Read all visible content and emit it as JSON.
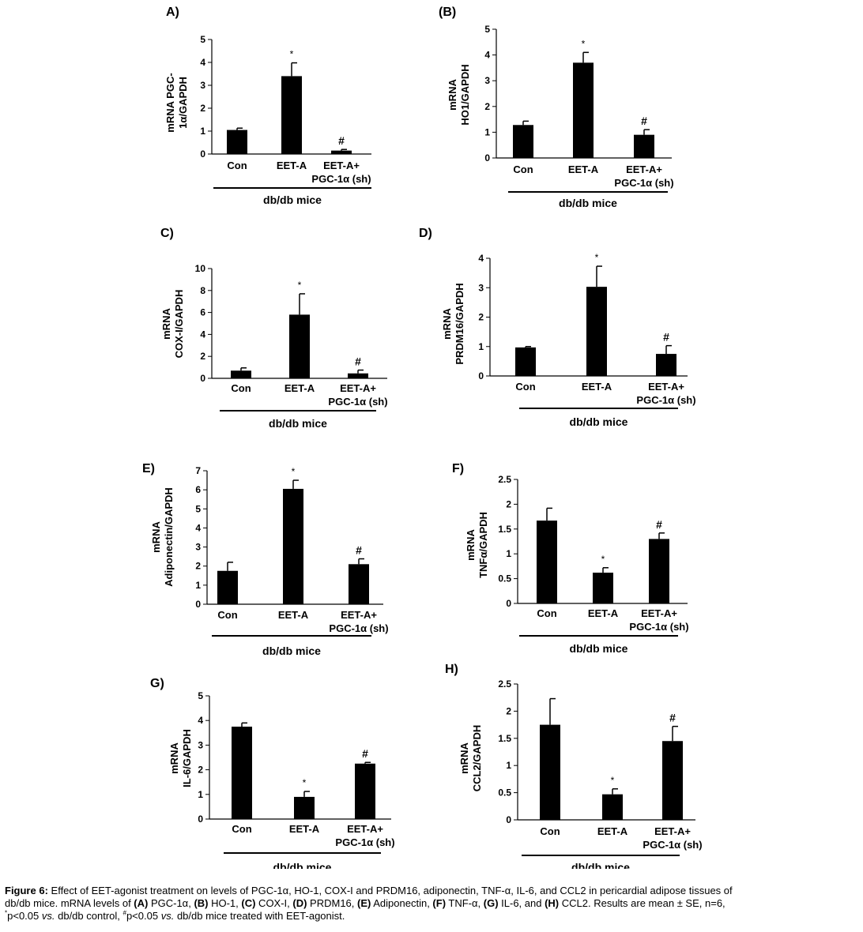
{
  "charts": [
    {
      "panel": "A)",
      "title": "",
      "ylabel": [
        "mRNA PGC-",
        "1α/GAPDH"
      ],
      "ylim": [
        0,
        5
      ],
      "ticks": [
        0,
        1,
        2,
        3,
        4,
        5
      ],
      "categories": [
        "Con",
        "EET-A",
        "EET-A+|PGC-1α (sh)"
      ],
      "values": [
        1.05,
        3.4,
        0.15
      ],
      "errors": [
        0.08,
        0.58,
        0.05
      ],
      "marks": [
        "",
        "*",
        "#"
      ],
      "group_label": "db/db mice"
    },
    {
      "panel": "(B)",
      "title": "",
      "ylabel": [
        "mRNA",
        "HO1/GAPDH"
      ],
      "ylim": [
        0,
        5
      ],
      "ticks": [
        0,
        1,
        2,
        3,
        4,
        5
      ],
      "categories": [
        "Con",
        "EET-A",
        "EET-A+|PGC-1α (sh)"
      ],
      "values": [
        1.28,
        3.7,
        0.9
      ],
      "errors": [
        0.15,
        0.4,
        0.2
      ],
      "marks": [
        "",
        "*",
        "#"
      ],
      "group_label": "db/db mice"
    },
    {
      "panel": "C)",
      "title": "",
      "ylabel": [
        "mRNA",
        "COX-I/GAPDH"
      ],
      "ylim": [
        0,
        10
      ],
      "ticks": [
        0,
        2,
        4,
        6,
        8,
        10
      ],
      "categories": [
        "Con",
        "EET-A",
        "EET-A+|PGC-1α (sh)"
      ],
      "values": [
        0.7,
        5.8,
        0.45
      ],
      "errors": [
        0.25,
        1.9,
        0.3
      ],
      "marks": [
        "",
        "*",
        "#"
      ],
      "group_label": "db/db mice"
    },
    {
      "panel": "D)",
      "title": "",
      "ylabel": [
        "mRNA",
        "PRDM16/GAPDH"
      ],
      "ylim": [
        0,
        4
      ],
      "ticks": [
        0,
        1,
        2,
        3,
        4
      ],
      "categories": [
        "Con",
        "EET-A",
        "EET-A+|PGC-1α (sh)"
      ],
      "values": [
        0.97,
        3.03,
        0.75
      ],
      "errors": [
        0.03,
        0.7,
        0.28
      ],
      "marks": [
        "",
        "*",
        "#"
      ],
      "group_label": "db/db mice"
    },
    {
      "panel": "E)",
      "title": "",
      "ylabel": [
        "mRNA",
        "Adiponectin/GAPDH"
      ],
      "ylim": [
        0,
        7
      ],
      "ticks": [
        0,
        1,
        2,
        3,
        4,
        5,
        6,
        7
      ],
      "categories": [
        "Con",
        "EET-A",
        "EET-A+|PGC-1α (sh)"
      ],
      "values": [
        1.75,
        6.05,
        2.1
      ],
      "errors": [
        0.45,
        0.45,
        0.28
      ],
      "marks": [
        "",
        "*",
        "#"
      ],
      "group_label": "db/db mice"
    },
    {
      "panel": "F)",
      "title": "",
      "ylabel": [
        "mRNA",
        "TNFα/GAPDH"
      ],
      "ylim": [
        0,
        2.5
      ],
      "ticks": [
        0,
        0.5,
        1,
        1.5,
        2,
        2.5
      ],
      "categories": [
        "Con",
        "EET-A",
        "EET-A+|PGC-1α (sh)"
      ],
      "values": [
        1.67,
        0.62,
        1.3
      ],
      "errors": [
        0.25,
        0.1,
        0.12
      ],
      "marks": [
        "",
        "*",
        "#"
      ],
      "group_label": "db/db mice"
    },
    {
      "panel": "G)",
      "title": "",
      "ylabel": [
        "mRNA",
        "IL-6/GAPDH"
      ],
      "ylim": [
        0,
        5
      ],
      "ticks": [
        0,
        1,
        2,
        3,
        4,
        5
      ],
      "categories": [
        "Con",
        "EET-A",
        "EET-A+|PGC-1α (sh)"
      ],
      "values": [
        3.75,
        0.9,
        2.25
      ],
      "errors": [
        0.15,
        0.22,
        0.05
      ],
      "marks": [
        "",
        "*",
        "#"
      ],
      "group_label": "db/db mice"
    },
    {
      "panel": "H)",
      "title": "",
      "ylabel": [
        "mRNA",
        "CCL2/GAPDH"
      ],
      "ylim": [
        0,
        2.5
      ],
      "ticks": [
        0,
        0.5,
        1,
        1.5,
        2,
        2.5
      ],
      "categories": [
        "Con",
        "EET-A",
        "EET-A+|PGC-1α (sh)"
      ],
      "values": [
        1.75,
        0.47,
        1.45
      ],
      "errors": [
        0.48,
        0.1,
        0.27
      ],
      "marks": [
        "",
        "*",
        "#"
      ],
      "group_label": "db/db mice"
    }
  ],
  "chart_data": [
    {
      "type": "bar",
      "panel": "A",
      "title": "",
      "categories": [
        "Con",
        "EET-A",
        "EET-A+ PGC-1α (sh)"
      ],
      "values": [
        1.05,
        3.4,
        0.15
      ],
      "errors": [
        0.08,
        0.58,
        0.05
      ],
      "xlabel": "db/db mice",
      "ylabel": "mRNA PGC-1α/GAPDH",
      "ylim": [
        0,
        5
      ]
    },
    {
      "type": "bar",
      "panel": "B",
      "title": "",
      "categories": [
        "Con",
        "EET-A",
        "EET-A+ PGC-1α (sh)"
      ],
      "values": [
        1.28,
        3.7,
        0.9
      ],
      "errors": [
        0.15,
        0.4,
        0.2
      ],
      "xlabel": "db/db mice",
      "ylabel": "mRNA HO1/GAPDH",
      "ylim": [
        0,
        5
      ]
    },
    {
      "type": "bar",
      "panel": "C",
      "title": "",
      "categories": [
        "Con",
        "EET-A",
        "EET-A+ PGC-1α (sh)"
      ],
      "values": [
        0.7,
        5.8,
        0.45
      ],
      "errors": [
        0.25,
        1.9,
        0.3
      ],
      "xlabel": "db/db mice",
      "ylabel": "mRNA COX-I/GAPDH",
      "ylim": [
        0,
        10
      ]
    },
    {
      "type": "bar",
      "panel": "D",
      "title": "",
      "categories": [
        "Con",
        "EET-A",
        "EET-A+ PGC-1α (sh)"
      ],
      "values": [
        0.97,
        3.03,
        0.75
      ],
      "errors": [
        0.03,
        0.7,
        0.28
      ],
      "xlabel": "db/db mice",
      "ylabel": "mRNA PRDM16/GAPDH",
      "ylim": [
        0,
        4
      ]
    },
    {
      "type": "bar",
      "panel": "E",
      "title": "",
      "categories": [
        "Con",
        "EET-A",
        "EET-A+ PGC-1α (sh)"
      ],
      "values": [
        1.75,
        6.05,
        2.1
      ],
      "errors": [
        0.45,
        0.45,
        0.28
      ],
      "xlabel": "db/db mice",
      "ylabel": "mRNA Adiponectin/GAPDH",
      "ylim": [
        0,
        7
      ]
    },
    {
      "type": "bar",
      "panel": "F",
      "title": "",
      "categories": [
        "Con",
        "EET-A",
        "EET-A+ PGC-1α (sh)"
      ],
      "values": [
        1.67,
        0.62,
        1.3
      ],
      "errors": [
        0.25,
        0.1,
        0.12
      ],
      "xlabel": "db/db mice",
      "ylabel": "mRNA TNFα/GAPDH",
      "ylim": [
        0,
        2.5
      ]
    },
    {
      "type": "bar",
      "panel": "G",
      "title": "",
      "categories": [
        "Con",
        "EET-A",
        "EET-A+ PGC-1α (sh)"
      ],
      "values": [
        3.75,
        0.9,
        2.25
      ],
      "errors": [
        0.15,
        0.22,
        0.05
      ],
      "xlabel": "db/db mice",
      "ylabel": "mRNA IL-6/GAPDH",
      "ylim": [
        0,
        5
      ]
    },
    {
      "type": "bar",
      "panel": "H",
      "title": "",
      "categories": [
        "Con",
        "EET-A",
        "EET-A+ PGC-1α (sh)"
      ],
      "values": [
        1.75,
        0.47,
        1.45
      ],
      "errors": [
        0.48,
        0.1,
        0.27
      ],
      "xlabel": "db/db mice",
      "ylabel": "mRNA CCL2/GAPDH",
      "ylim": [
        0,
        2.5
      ]
    }
  ],
  "caption": {
    "figure_label": "Figure 6:",
    "line1": " Effect of EET-agonist treatment on levels of PGC-1α, HO-1, COX-I and PRDM16, adiponectin, TNF-α, IL-6, and CCL2 in pericardial adipose tissues of",
    "line2_intro": "db/db mice. mRNA levels of ",
    "items": [
      {
        "tag": "(A)",
        "text": " PGC-1α, "
      },
      {
        "tag": "(B)",
        "text": " HO-1, "
      },
      {
        "tag": "(C)",
        "text": " COX-I, "
      },
      {
        "tag": "(D)",
        "text": " PRDM16, "
      },
      {
        "tag": "(E)",
        "text": " Adiponectin, "
      },
      {
        "tag": "(F)",
        "text": " TNF-α, "
      },
      {
        "tag": "(G)",
        "text": " IL-6, and "
      },
      {
        "tag": "(H)",
        "text": " CCL2. Results are mean ± SE, n=6,"
      }
    ],
    "star_sup": "*",
    "line3_a": "p<0.05 ",
    "vs1": "vs.",
    "line3_b": " db/db control, ",
    "hash_sup": "#",
    "line3_c": "p<0.05 ",
    "vs2": "vs.",
    "line3_d": " db/db mice treated with EET-agonist."
  }
}
